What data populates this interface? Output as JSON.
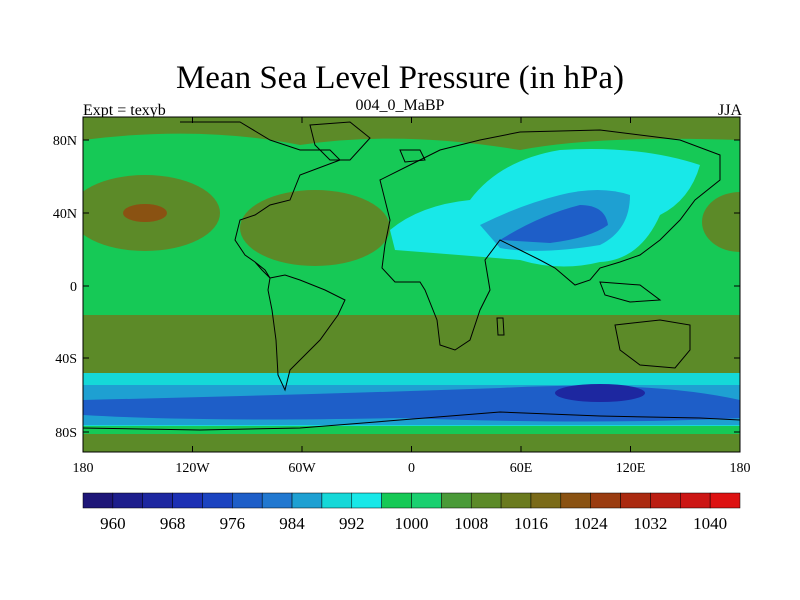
{
  "title": "Mean Sea Level Pressure (in hPa)",
  "left_label": "Expt = texyb",
  "center_label": "004_0_MaBP",
  "right_label": "JJA",
  "lat_ticks": [
    "80N",
    "40N",
    "0",
    "40S",
    "80S"
  ],
  "lon_ticks": [
    "180",
    "120W",
    "60W",
    "0",
    "60E",
    "120E",
    "180"
  ],
  "colorbar": {
    "colors": [
      "#1e1678",
      "#1d1e8c",
      "#1d27a0",
      "#1c30b4",
      "#1b43c0",
      "#1e5ec8",
      "#2178d0",
      "#1ea0d2",
      "#15d8d8",
      "#18e8e8",
      "#16c956",
      "#1ad070",
      "#4a9a38",
      "#5c8a28",
      "#6a7a1e",
      "#7a6a18",
      "#8a5212",
      "#9a3c10",
      "#aa2a10",
      "#bb1e12",
      "#cc1614",
      "#dd1212"
    ],
    "labels": [
      "960",
      "968",
      "976",
      "984",
      "992",
      "1000",
      "1008",
      "1016",
      "1024",
      "1032",
      "1040"
    ]
  },
  "map_colors": {
    "green": "#16c956",
    "olive": "#5c8a28",
    "brown": "#8a5212",
    "cyan": "#15d8d8",
    "light_cyan": "#18e8e8",
    "blue": "#1e5ec8",
    "dark_blue": "#1d27a0"
  }
}
